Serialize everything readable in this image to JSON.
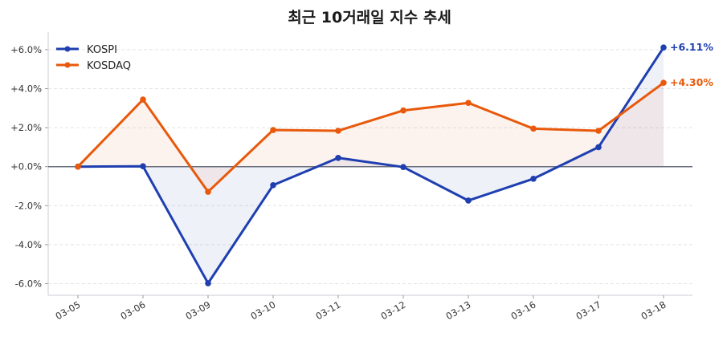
{
  "chart_data": {
    "type": "line",
    "title": "최근 10거래일 지수 추세",
    "xlabel": "",
    "ylabel": "",
    "categories": [
      "03-05",
      "03-06",
      "03-09",
      "03-10",
      "03-11",
      "03-12",
      "03-13",
      "03-16",
      "03-17",
      "03-18"
    ],
    "series": [
      {
        "name": "KOSPI",
        "color": "#1f3fb0",
        "values": [
          0.0,
          0.02,
          -5.98,
          -0.95,
          0.45,
          -0.02,
          -1.74,
          -0.62,
          1.0,
          6.11
        ],
        "end_label": "+6.11%"
      },
      {
        "name": "KOSDAQ",
        "color": "#e8590c",
        "values": [
          0.0,
          3.44,
          -1.29,
          1.88,
          1.84,
          2.88,
          3.27,
          1.95,
          1.84,
          4.3
        ],
        "end_label": "+4.30%"
      }
    ],
    "yticks": [
      6,
      4,
      2,
      0,
      -2,
      -4,
      -6
    ],
    "ytick_labels": [
      "+6.0%",
      "+4.0%",
      "+2.0%",
      "+0.0%",
      "-2.0%",
      "-4.0%",
      "-6.0%"
    ],
    "ylim": [
      -6.6,
      6.7
    ],
    "grid": "horizontal dashed",
    "legend": "top-left",
    "area_fill": true,
    "zero_line": true
  }
}
